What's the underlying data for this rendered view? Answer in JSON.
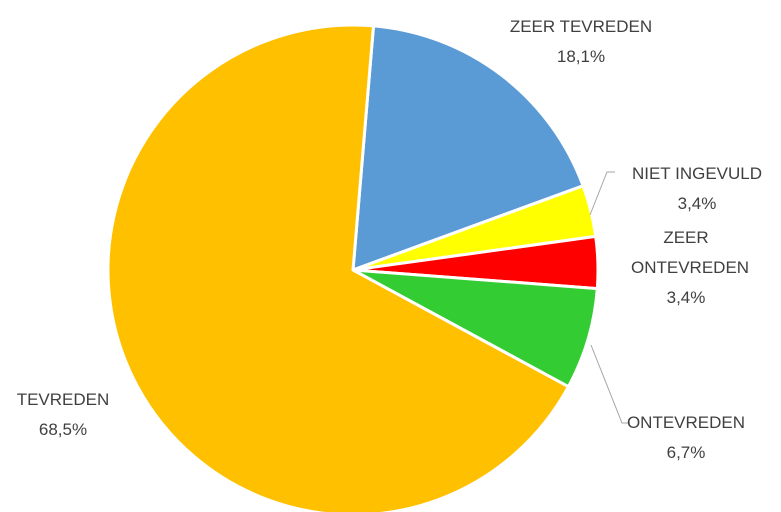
{
  "chart_data": {
    "type": "pie",
    "categories": [
      "ZEER TEVREDEN",
      "NIET INGEVULD",
      "ZEER ONTEVREDEN",
      "ONTEVREDEN",
      "TEVREDEN"
    ],
    "values": [
      18.1,
      3.4,
      3.4,
      6.7,
      68.5
    ],
    "value_labels": [
      "18,1%",
      "3,4%",
      "3,4%",
      "6,7%",
      "68,5%"
    ],
    "colors": [
      "#5b9bd5",
      "#ffff00",
      "#ff0000",
      "#33cc33",
      "#ffc000"
    ]
  }
}
